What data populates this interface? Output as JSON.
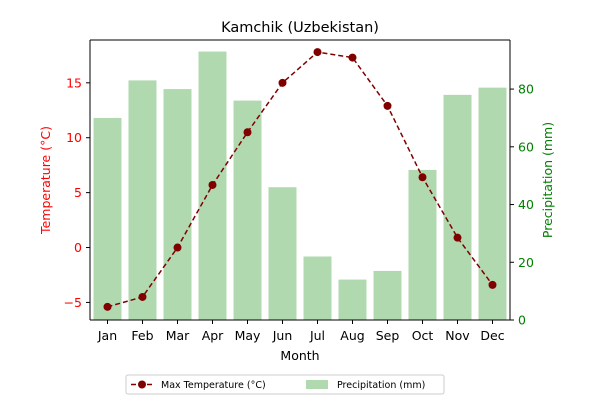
{
  "chart_data": {
    "type": "bar",
    "title": "Kamchik (Uzbekistan)",
    "categories": [
      "Jan",
      "Feb",
      "Mar",
      "Apr",
      "May",
      "Jun",
      "Jul",
      "Aug",
      "Sep",
      "Oct",
      "Nov",
      "Dec"
    ],
    "xlabel": "Month",
    "ylabel_left": "Temperature (°C)",
    "ylabel_right": "Precipitation (mm)",
    "ylim_left": [
      -6.6,
      18.9
    ],
    "ylim_right": [
      0,
      97
    ],
    "yticks_left": [
      -5,
      0,
      5,
      10,
      15
    ],
    "yticks_right": [
      0,
      20,
      40,
      60,
      80
    ],
    "grid": false,
    "legend_position": "bottom-center",
    "series": [
      {
        "name": "Precipitation (mm)",
        "type": "bar",
        "axis": "right",
        "color": "#b0d9b0",
        "values": [
          70,
          83,
          80,
          93,
          76,
          46,
          22,
          14,
          17,
          52,
          78,
          80.5
        ]
      },
      {
        "name": "Max Temperature (°C)",
        "type": "line",
        "axis": "left",
        "color": "#800000",
        "line_style": "dashed",
        "marker": "circle",
        "values": [
          -5.4,
          -4.5,
          0.0,
          5.7,
          10.5,
          15.0,
          17.8,
          17.3,
          12.9,
          6.4,
          0.9,
          -3.4
        ]
      }
    ],
    "colors": {
      "left_axis": "#ff0000",
      "right_axis": "#008000",
      "text": "#000000"
    }
  }
}
